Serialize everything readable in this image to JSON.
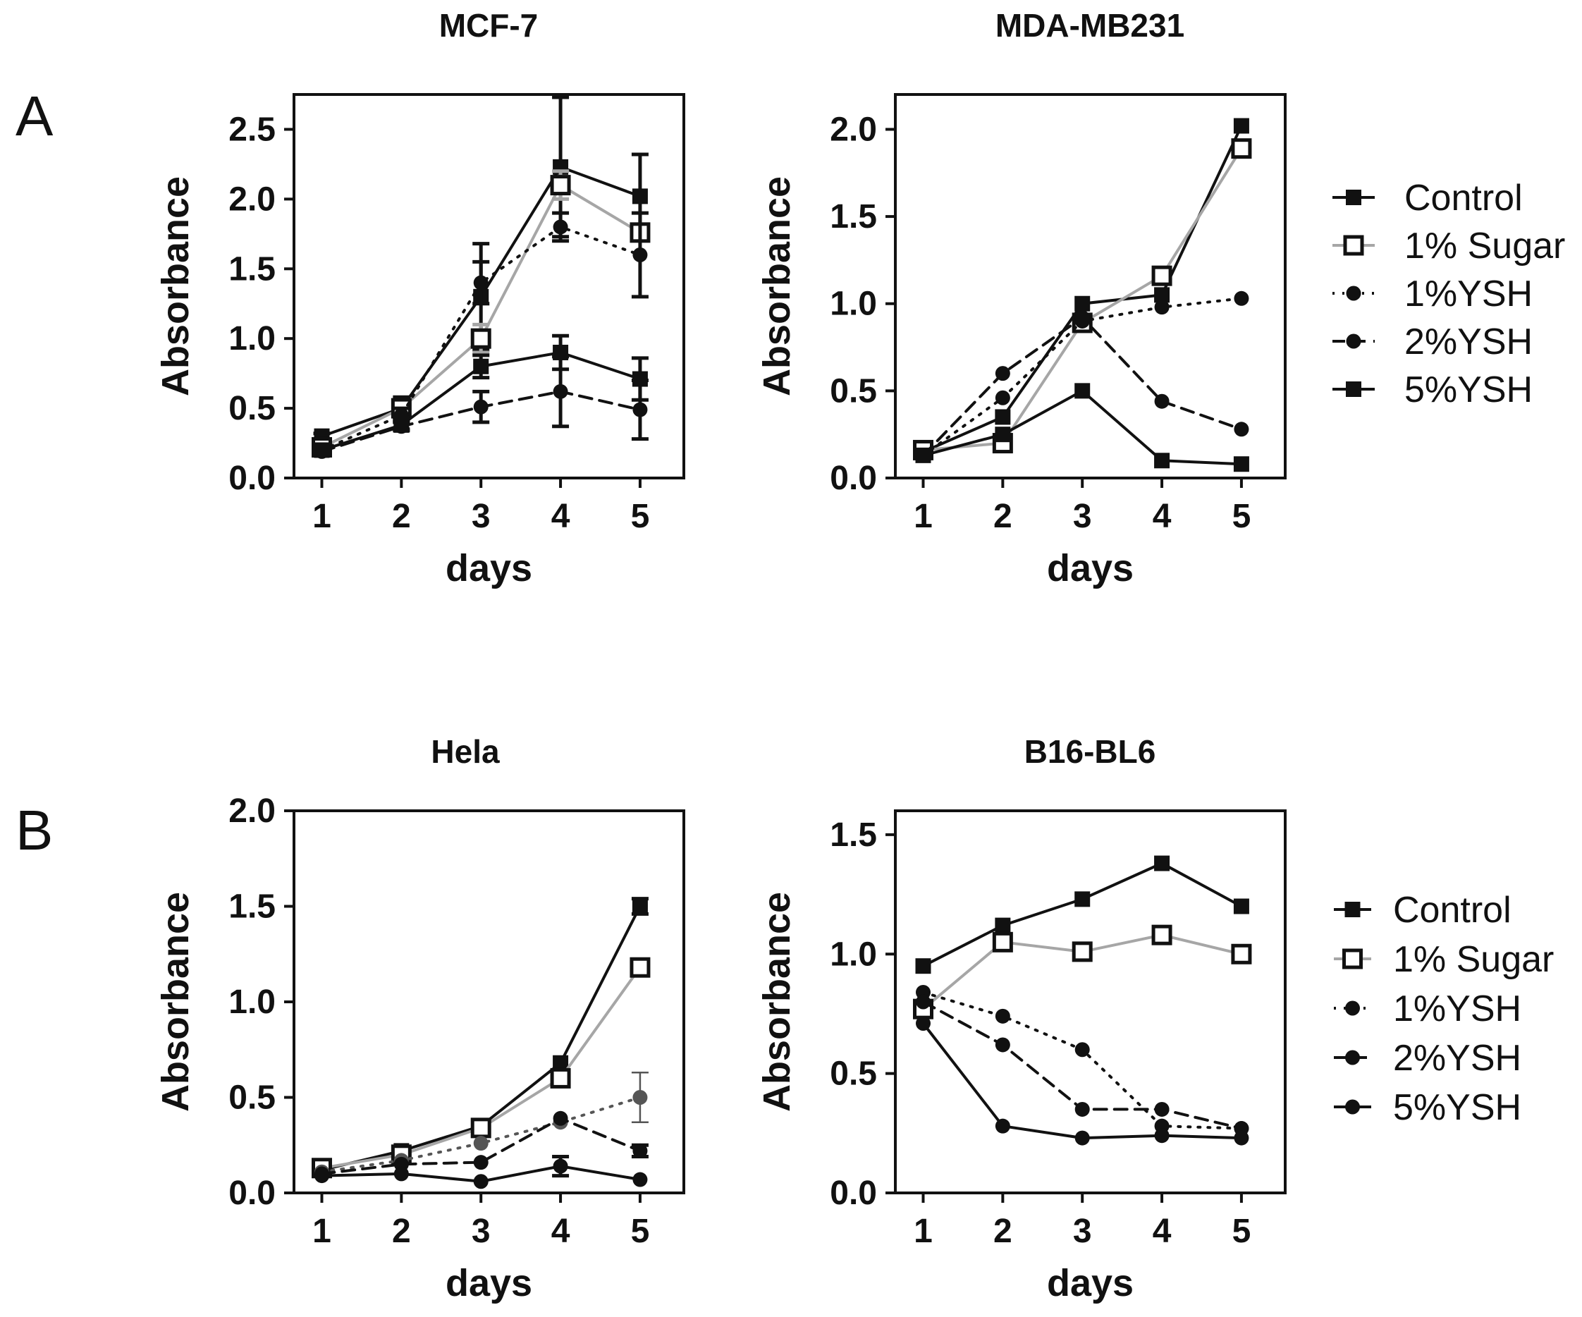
{
  "panel_labels": {
    "a": "A",
    "b": "B"
  },
  "colors": {
    "black": "#111111",
    "gray": "#a6a6a6",
    "dark_gray": "#555555"
  },
  "legend_top": {
    "entries": [
      {
        "label": "Control",
        "marker": "square",
        "color": "#111111",
        "dash": "solid"
      },
      {
        "label": "1% Sugar",
        "marker": "open-square",
        "color": "#a6a6a6",
        "dash": "solid"
      },
      {
        "label": "1%YSH",
        "marker": "circle",
        "color": "#111111",
        "dash": "dotted"
      },
      {
        "label": "2%YSH",
        "marker": "circle",
        "color": "#111111",
        "dash": "dashed"
      },
      {
        "label": "5%YSH",
        "marker": "square",
        "color": "#111111",
        "dash": "solid"
      }
    ]
  },
  "legend_bottom": {
    "entries": [
      {
        "label": "Control",
        "marker": "square",
        "color": "#111111",
        "dash": "solid"
      },
      {
        "label": "1% Sugar",
        "marker": "open-square",
        "color": "#a6a6a6",
        "dash": "solid"
      },
      {
        "label": "1%YSH",
        "marker": "circle",
        "color": "#111111",
        "dash": "dotted"
      },
      {
        "label": "2%YSH",
        "marker": "circle",
        "color": "#111111",
        "dash": "dashed"
      },
      {
        "label": "5%YSH",
        "marker": "circle",
        "color": "#111111",
        "dash": "solid"
      }
    ]
  },
  "chart_data": [
    {
      "type": "line",
      "title": "MCF-7",
      "xlabel": "days",
      "ylabel": "Absorbance",
      "x": [
        1,
        2,
        3,
        4,
        5
      ],
      "xticks": [
        "1",
        "2",
        "3",
        "4",
        "5"
      ],
      "xlim": [
        0.65,
        5.55
      ],
      "ylim": [
        0,
        2.75
      ],
      "yticks": [
        "0.0",
        "0.5",
        "1.0",
        "1.5",
        "2.0",
        "2.5"
      ],
      "series": [
        {
          "name": "Control",
          "values": [
            0.3,
            0.5,
            1.3,
            2.23,
            2.02
          ],
          "err": [
            0.02,
            0.08,
            0.38,
            0.5,
            0.3
          ],
          "marker": "square",
          "color": "#111111",
          "dash": "solid"
        },
        {
          "name": "1% Sugar",
          "values": [
            0.22,
            0.5,
            1.0,
            2.1,
            1.76
          ],
          "err": [
            0.03,
            0.05,
            0.1,
            0.1,
            0.05
          ],
          "marker": "open-square",
          "color": "#a6a6a6",
          "dash": "solid"
        },
        {
          "name": "1%YSH",
          "values": [
            0.2,
            0.45,
            1.4,
            1.8,
            1.6
          ],
          "err": [
            0.02,
            0.05,
            0.15,
            0.1,
            0.3
          ],
          "marker": "circle",
          "color": "#111111",
          "dash": "dotted"
        },
        {
          "name": "2%YSH",
          "values": [
            0.19,
            0.37,
            0.51,
            0.62,
            0.49
          ],
          "err": [
            0.02,
            0.03,
            0.11,
            0.25,
            0.21
          ],
          "marker": "circle",
          "color": "#111111",
          "dash": "dashed"
        },
        {
          "name": "5%YSH",
          "values": [
            0.2,
            0.38,
            0.8,
            0.9,
            0.71
          ],
          "err": [
            0.02,
            0.03,
            0.08,
            0.12,
            0.15
          ],
          "marker": "square",
          "color": "#111111",
          "dash": "solid"
        }
      ]
    },
    {
      "type": "line",
      "title": "MDA-MB231",
      "xlabel": "days",
      "ylabel": "Absorbance",
      "x": [
        1,
        2,
        3,
        4,
        5
      ],
      "xticks": [
        "1",
        "2",
        "3",
        "4",
        "5"
      ],
      "xlim": [
        0.65,
        5.55
      ],
      "ylim": [
        0,
        2.2
      ],
      "yticks": [
        "0.0",
        "0.5",
        "1.0",
        "1.5",
        "2.0"
      ],
      "series": [
        {
          "name": "Control",
          "values": [
            0.15,
            0.35,
            1.0,
            1.05,
            2.02
          ],
          "err": [
            0,
            0,
            0,
            0,
            0
          ],
          "marker": "square",
          "color": "#111111",
          "dash": "solid"
        },
        {
          "name": "1% Sugar",
          "values": [
            0.16,
            0.2,
            0.89,
            1.16,
            1.89
          ],
          "err": [
            0,
            0,
            0,
            0,
            0
          ],
          "marker": "open-square",
          "color": "#a6a6a6",
          "dash": "solid"
        },
        {
          "name": "1%YSH",
          "values": [
            0.13,
            0.46,
            0.9,
            0.98,
            1.03
          ],
          "err": [
            0,
            0,
            0,
            0,
            0
          ],
          "marker": "circle",
          "color": "#111111",
          "dash": "dotted"
        },
        {
          "name": "2%YSH",
          "values": [
            0.13,
            0.6,
            0.92,
            0.44,
            0.28
          ],
          "err": [
            0,
            0,
            0,
            0,
            0
          ],
          "marker": "circle",
          "color": "#111111",
          "dash": "dashed"
        },
        {
          "name": "5%YSH",
          "values": [
            0.13,
            0.25,
            0.5,
            0.1,
            0.08
          ],
          "err": [
            0,
            0,
            0,
            0,
            0
          ],
          "marker": "square",
          "color": "#111111",
          "dash": "solid"
        }
      ]
    },
    {
      "type": "line",
      "title": "Hela",
      "xlabel": "days",
      "ylabel": "Absorbance",
      "x": [
        1,
        2,
        3,
        4,
        5
      ],
      "xticks": [
        "1",
        "2",
        "3",
        "4",
        "5"
      ],
      "xlim": [
        0.65,
        5.55
      ],
      "ylim": [
        0,
        2.0
      ],
      "yticks": [
        "0.0",
        "0.5",
        "1.0",
        "1.5",
        "2.0"
      ],
      "series": [
        {
          "name": "Control",
          "values": [
            0.12,
            0.22,
            0.35,
            0.68,
            1.5
          ],
          "err": [
            0,
            0,
            0,
            0,
            0.04
          ],
          "marker": "square",
          "color": "#111111",
          "dash": "solid"
        },
        {
          "name": "1% Sugar",
          "values": [
            0.13,
            0.2,
            0.34,
            0.6,
            1.18
          ],
          "err": [
            0,
            0,
            0,
            0,
            0
          ],
          "marker": "open-square",
          "color": "#a6a6a6",
          "dash": "solid"
        },
        {
          "name": "1%YSH",
          "values": [
            0.11,
            0.17,
            0.26,
            0.37,
            0.5
          ],
          "err": [
            0,
            0,
            0,
            0,
            0.13
          ],
          "marker": "circle",
          "color": "#555555",
          "dash": "dotted"
        },
        {
          "name": "2%YSH",
          "values": [
            0.1,
            0.15,
            0.16,
            0.39,
            0.22
          ],
          "err": [
            0,
            0,
            0,
            0,
            0.03
          ],
          "marker": "circle",
          "color": "#111111",
          "dash": "dashed"
        },
        {
          "name": "5%YSH",
          "values": [
            0.09,
            0.1,
            0.06,
            0.14,
            0.07
          ],
          "err": [
            0,
            0,
            0,
            0.05,
            0
          ],
          "marker": "circle",
          "color": "#111111",
          "dash": "solid"
        }
      ]
    },
    {
      "type": "line",
      "title": "B16-BL6",
      "xlabel": "days",
      "ylabel": "Absorbance",
      "x": [
        1,
        2,
        3,
        4,
        5
      ],
      "xticks": [
        "1",
        "2",
        "3",
        "4",
        "5"
      ],
      "xlim": [
        0.65,
        5.55
      ],
      "ylim": [
        0,
        1.6
      ],
      "yticks": [
        "0.0",
        "0.5",
        "1.0",
        "1.5"
      ],
      "series": [
        {
          "name": "Control",
          "values": [
            0.95,
            1.12,
            1.23,
            1.38,
            1.2
          ],
          "err": [
            0,
            0,
            0,
            0,
            0
          ],
          "marker": "square",
          "color": "#111111",
          "dash": "solid"
        },
        {
          "name": "1% Sugar",
          "values": [
            0.77,
            1.05,
            1.01,
            1.08,
            1.0
          ],
          "err": [
            0,
            0,
            0,
            0,
            0
          ],
          "marker": "open-square",
          "color": "#a6a6a6",
          "dash": "solid"
        },
        {
          "name": "1%YSH",
          "values": [
            0.84,
            0.74,
            0.6,
            0.28,
            0.27
          ],
          "err": [
            0,
            0,
            0,
            0,
            0
          ],
          "marker": "circle",
          "color": "#111111",
          "dash": "dotted"
        },
        {
          "name": "2%YSH",
          "values": [
            0.8,
            0.62,
            0.35,
            0.35,
            0.27
          ],
          "err": [
            0,
            0,
            0,
            0,
            0
          ],
          "marker": "circle",
          "color": "#111111",
          "dash": "dashed"
        },
        {
          "name": "5%YSH",
          "values": [
            0.71,
            0.28,
            0.23,
            0.24,
            0.23
          ],
          "err": [
            0,
            0,
            0,
            0,
            0
          ],
          "marker": "circle",
          "color": "#111111",
          "dash": "solid"
        }
      ]
    }
  ]
}
